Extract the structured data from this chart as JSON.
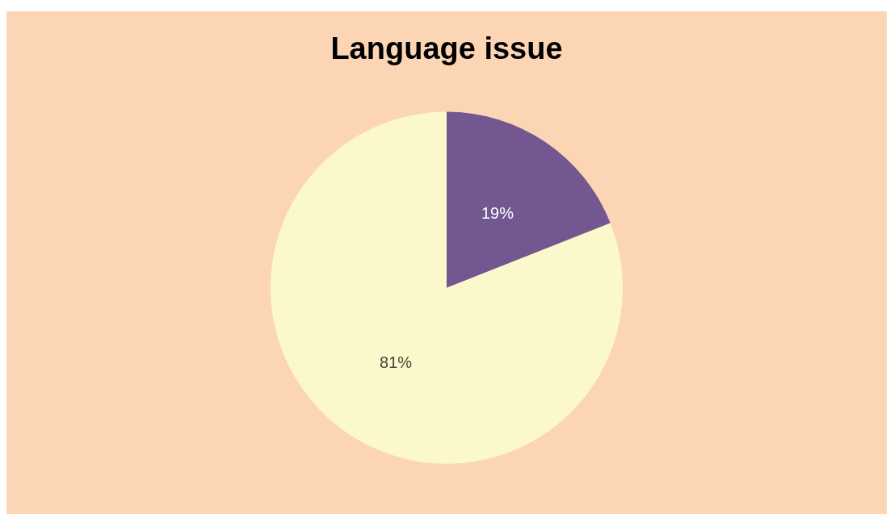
{
  "chart_data": {
    "type": "pie",
    "title": "Language issue",
    "categories": [
      null,
      null
    ],
    "values": [
      19,
      81
    ],
    "colors": [
      "#725791",
      "#fbf8cb"
    ],
    "value_labels": [
      "19%",
      "81%"
    ]
  }
}
